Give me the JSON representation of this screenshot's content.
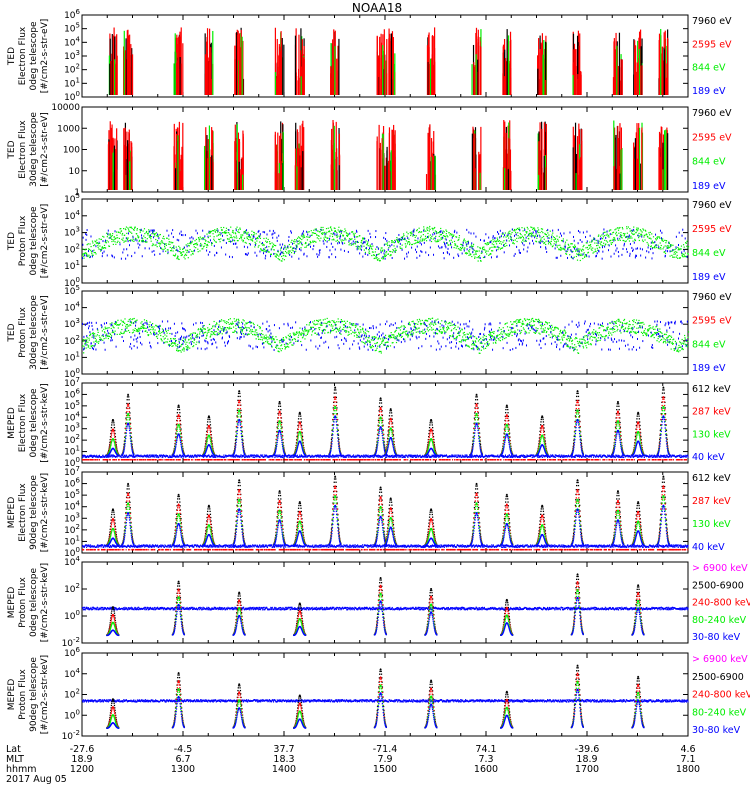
{
  "title": "NOAA18",
  "colors": {
    "black": "#000000",
    "red": "#ff0000",
    "green": "#00ee00",
    "blue": "#0000ff",
    "magenta": "#ff00ff"
  },
  "chart_data": [
    {
      "type": "scatter",
      "ylabel": [
        "TED",
        "Electron Flux",
        "0deg telescope",
        "[#/cm2-s-str-eV]"
      ],
      "ylim": [
        1,
        1000000
      ],
      "yscale": "log",
      "ytick_labels": [
        "10^0",
        "10^1",
        "10^2",
        "10^3",
        "10^4",
        "10^5",
        "10^6"
      ],
      "legend": [
        {
          "label": "7960 eV",
          "color": "#000000"
        },
        {
          "label": "2595 eV",
          "color": "#ff0000"
        },
        {
          "label": "844 eV",
          "color": "#00ee00"
        },
        {
          "label": "189 eV",
          "color": "#0000ff"
        }
      ]
    },
    {
      "type": "scatter",
      "ylabel": [
        "TED",
        "Electron Flux",
        "30deg telescope",
        "[#/cm2-s-str-eV]"
      ],
      "ylim": [
        1,
        10000
      ],
      "yscale": "log",
      "ytick_labels": [
        "1",
        "10",
        "100",
        "1000",
        "10000"
      ],
      "legend": [
        {
          "label": "7960 eV",
          "color": "#000000"
        },
        {
          "label": "2595 eV",
          "color": "#ff0000"
        },
        {
          "label": "844 eV",
          "color": "#00ee00"
        },
        {
          "label": "189 eV",
          "color": "#0000ff"
        }
      ]
    },
    {
      "type": "scatter",
      "ylabel": [
        "TED",
        "Proton Flux",
        "0deg telescope",
        "[#/cm2-s-str-eV]"
      ],
      "ylim": [
        1,
        100000
      ],
      "yscale": "log",
      "ytick_labels": [
        "10^0",
        "10^1",
        "10^2",
        "10^3",
        "10^4",
        "10^5"
      ],
      "legend": [
        {
          "label": "7960 eV",
          "color": "#000000"
        },
        {
          "label": "2595 eV",
          "color": "#ff0000"
        },
        {
          "label": "844 eV",
          "color": "#00ee00"
        },
        {
          "label": "189 eV",
          "color": "#0000ff"
        }
      ]
    },
    {
      "type": "scatter",
      "ylabel": [
        "TED",
        "Proton Flux",
        "30deg telescope",
        "[#/cm2-s-str-eV]"
      ],
      "ylim": [
        1,
        100000
      ],
      "yscale": "log",
      "ytick_labels": [
        "10^0",
        "10^1",
        "10^2",
        "10^3",
        "10^4",
        "10^5"
      ],
      "legend": [
        {
          "label": "7960 eV",
          "color": "#000000"
        },
        {
          "label": "2595 eV",
          "color": "#ff0000"
        },
        {
          "label": "844 eV",
          "color": "#00ee00"
        },
        {
          "label": "189 eV",
          "color": "#0000ff"
        }
      ]
    },
    {
      "type": "scatter",
      "ylabel": [
        "MEPED",
        "Electron Flux",
        "0deg telescope",
        "[#/cm2-s-str-keV]"
      ],
      "ylim": [
        1,
        10000000
      ],
      "yscale": "log",
      "ytick_labels": [
        "10^0",
        "10^1",
        "10^2",
        "10^3",
        "10^4",
        "10^5",
        "10^6",
        "10^7"
      ],
      "legend": [
        {
          "label": "612 keV",
          "color": "#000000"
        },
        {
          "label": "287 keV",
          "color": "#ff0000"
        },
        {
          "label": "130 keV",
          "color": "#00ee00"
        },
        {
          "label": "40 keV",
          "color": "#0000ff"
        }
      ]
    },
    {
      "type": "scatter",
      "ylabel": [
        "MEPED",
        "Electron Flux",
        "90deg telescope",
        "[#/cm2-s-str-keV]"
      ],
      "ylim": [
        1,
        10000000
      ],
      "yscale": "log",
      "ytick_labels": [
        "10^0",
        "10^1",
        "10^2",
        "10^3",
        "10^4",
        "10^5",
        "10^6",
        "10^7"
      ],
      "legend": [
        {
          "label": "612 keV",
          "color": "#000000"
        },
        {
          "label": "287 keV",
          "color": "#ff0000"
        },
        {
          "label": "130 keV",
          "color": "#00ee00"
        },
        {
          "label": "40 keV",
          "color": "#0000ff"
        }
      ]
    },
    {
      "type": "scatter",
      "ylabel": [
        "MEPED",
        "Proton Flux",
        "0deg telescope",
        "[#/cm2-s-str-keV]"
      ],
      "ylim": [
        0.01,
        100000
      ],
      "yscale": "log",
      "ytick_labels": [
        "10^-2",
        "10^0",
        "10^2",
        "10^4"
      ],
      "legend": [
        {
          "label": "> 6900 keV",
          "color": "#ff00ff"
        },
        {
          "label": "2500-6900",
          "color": "#000000"
        },
        {
          "label": "240-800 keV",
          "color": "#ff0000"
        },
        {
          "label": "80-240 keV",
          "color": "#00ee00"
        },
        {
          "label": "30-80 keV",
          "color": "#0000ff"
        }
      ]
    },
    {
      "type": "scatter",
      "ylabel": [
        "MEPED",
        "Proton Flux",
        "90deg telescope",
        "[#/cm2-s-str-keV]"
      ],
      "ylim": [
        0.01,
        1000000
      ],
      "yscale": "log",
      "ytick_labels": [
        "10^-2",
        "10^0",
        "10^2",
        "10^4",
        "10^6"
      ],
      "legend": [
        {
          "label": "> 6900 keV",
          "color": "#ff00ff"
        },
        {
          "label": "2500-6900",
          "color": "#000000"
        },
        {
          "label": "240-800 keV",
          "color": "#ff0000"
        },
        {
          "label": "80-240 keV",
          "color": "#00ee00"
        },
        {
          "label": "30-80 keV",
          "color": "#0000ff"
        }
      ]
    }
  ],
  "x_axis": {
    "row_labels": [
      "Lat",
      "MLT",
      "hhmm"
    ],
    "date": "2017 Aug 05",
    "ticks": [
      {
        "lat": "-27.6",
        "mlt": "18.9",
        "hhmm": "1200"
      },
      {
        "lat": "-4.5",
        "mlt": "6.7",
        "hhmm": "1300"
      },
      {
        "lat": "37.7",
        "mlt": "18.3",
        "hhmm": "1400"
      },
      {
        "lat": "-71.4",
        "mlt": "7.9",
        "hhmm": "1500"
      },
      {
        "lat": "74.1",
        "mlt": "7.3",
        "hhmm": "1600"
      },
      {
        "lat": "-39.6",
        "mlt": "18.9",
        "hhmm": "1700"
      },
      {
        "lat": "4.6",
        "mlt": "7.1",
        "hhmm": "1800"
      }
    ]
  }
}
